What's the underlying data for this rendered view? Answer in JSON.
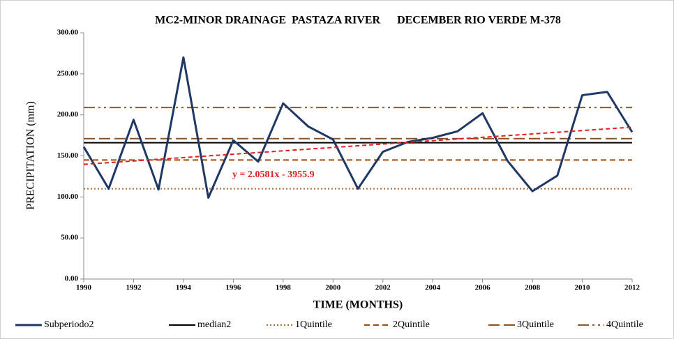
{
  "chart_data": {
    "type": "line",
    "title": "MC2-MINOR DRAINAGE  PASTAZA RIVER      DECEMBER RIO VERDE M-378",
    "xlabel": "TIME (MONTHS)",
    "ylabel": "PRECIPITATION  (mm)",
    "x": [
      1990,
      1991,
      1992,
      1993,
      1994,
      1995,
      1996,
      1997,
      1998,
      1999,
      2000,
      2001,
      2002,
      2003,
      2004,
      2005,
      2006,
      2007,
      2008,
      2009,
      2010,
      2011,
      2012
    ],
    "series": [
      {
        "name": "Subperiodo2",
        "color": "#1f3864",
        "values": [
          161,
          110,
          194,
          109,
          270,
          99,
          169,
          143,
          214,
          186,
          170,
          110,
          155,
          167,
          172,
          180,
          202,
          144,
          107,
          126,
          224,
          228,
          179
        ]
      }
    ],
    "reference_lines": [
      {
        "name": "median2",
        "value": 166,
        "color": "#000000",
        "dash": "none"
      },
      {
        "name": "1Quintile",
        "value": 110,
        "color": "#b06a2c",
        "dash": "2 3"
      },
      {
        "name": "2Quintile",
        "value": 145,
        "color": "#9c4a0b",
        "dash": "8 5"
      },
      {
        "name": "3Quintile",
        "value": 171,
        "color": "#8f5218",
        "dash": "16 6"
      },
      {
        "name": "4Quintile",
        "value": 209,
        "color": "#8b5a2b",
        "dash": "16 5 3 5 3 5"
      }
    ],
    "trendline": {
      "label": "y = 2.0581x - 3955.9",
      "slope": 2.0581,
      "intercept": -3955.9,
      "color": "#e02020"
    },
    "xlim": [
      1990,
      2012
    ],
    "xticks": [
      1990,
      1992,
      1994,
      1996,
      1998,
      2000,
      2002,
      2004,
      2006,
      2008,
      2010,
      2012
    ],
    "ylim": [
      0,
      300
    ],
    "yticks": [
      {
        "value": 0,
        "label": "0.00"
      },
      {
        "value": 50,
        "label": "50.00"
      },
      {
        "value": 100,
        "label": "100.00"
      },
      {
        "value": 150,
        "label": "150.00"
      },
      {
        "value": 200,
        "label": "200.00"
      },
      {
        "value": 250,
        "label": "250.00"
      },
      {
        "value": 300,
        "label": "300.00"
      }
    ],
    "legend": "bottom"
  }
}
